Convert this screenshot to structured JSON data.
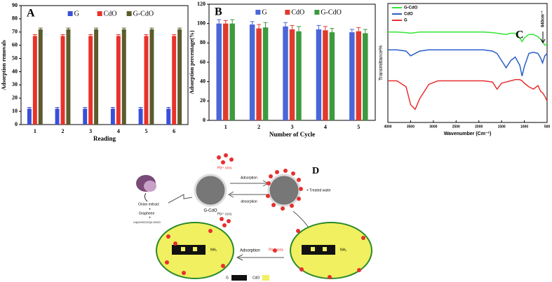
{
  "chart_data": [
    {
      "type": "bar",
      "annotation": "A",
      "xlabel": "Reading",
      "ylabel": "Adsorption removals",
      "categories": [
        "1",
        "2",
        "3",
        "4",
        "5",
        "6"
      ],
      "series": [
        {
          "name": "G",
          "color": "#3a4fd8",
          "values": [
            12,
            12,
            12,
            12,
            12,
            12
          ],
          "errors": [
            1,
            1,
            1,
            1,
            1,
            1
          ]
        },
        {
          "name": "CdO",
          "color": "#e8322a",
          "values": [
            67,
            67,
            67,
            67,
            67,
            67
          ],
          "errors": [
            1,
            1,
            1,
            1,
            1,
            1
          ]
        },
        {
          "name": "G-CdO",
          "color": "#5b5b2c",
          "values": [
            72,
            72,
            72,
            72,
            72,
            72
          ],
          "errors": [
            1,
            1,
            1,
            1,
            1,
            1
          ]
        }
      ],
      "ylim": [
        0,
        90
      ],
      "yticks": [
        0,
        10,
        20,
        30,
        40,
        50,
        60,
        70,
        80,
        90
      ],
      "legend": "top"
    },
    {
      "type": "bar",
      "annotation": "B",
      "xlabel": "Number of Cycle",
      "ylabel": "Adsorption percentage(%)",
      "categories": [
        "1",
        "2",
        "3",
        "4",
        "5"
      ],
      "series": [
        {
          "name": "G",
          "color": "#4a67d8",
          "values": [
            100,
            99,
            97,
            94,
            91
          ],
          "errors": [
            4,
            3,
            4,
            4,
            3
          ]
        },
        {
          "name": "CdO",
          "color": "#e03a2e",
          "values": [
            100,
            95,
            94,
            93,
            92
          ],
          "errors": [
            3,
            4,
            4,
            4,
            4
          ]
        },
        {
          "name": "G-CdO",
          "color": "#3e9a3e",
          "values": [
            100,
            96,
            92,
            91,
            90
          ],
          "errors": [
            4,
            5,
            5,
            4,
            4
          ]
        }
      ],
      "ylim": [
        0,
        120
      ],
      "yticks": [
        0,
        20,
        40,
        60,
        80,
        100,
        120
      ],
      "legend": "top"
    },
    {
      "type": "line",
      "annotation": "C",
      "peak_label": "640cm⁻¹",
      "xlabel": "Wavenumber (Cm⁻¹)",
      "ylabel": "Transmittance%",
      "x": [
        4000,
        3800,
        3600,
        3500,
        3400,
        3300,
        3100,
        2900,
        2700,
        2500,
        2300,
        2100,
        1900,
        1700,
        1600,
        1500,
        1400,
        1300,
        1200,
        1100,
        1050,
        1000,
        900,
        800,
        700,
        640,
        600,
        550,
        500
      ],
      "series": [
        {
          "name": "G-CdO",
          "color": "#33e633",
          "values": [
            76,
            76,
            75.5,
            75,
            75.5,
            76,
            76,
            76,
            76,
            76,
            76,
            76,
            76,
            75.5,
            75,
            74.5,
            74,
            75,
            75,
            71,
            68,
            71,
            74,
            74,
            72,
            70,
            68,
            65,
            66
          ]
        },
        {
          "name": "CdO",
          "color": "#2a5ec8",
          "values": [
            61,
            61,
            60,
            56,
            58,
            60,
            61,
            61,
            61,
            61,
            61,
            61,
            61,
            60,
            58,
            52,
            46,
            52,
            55,
            48,
            39,
            47,
            58,
            59,
            58,
            54,
            50,
            56,
            58
          ]
        },
        {
          "name": "G",
          "color": "#e83030",
          "values": [
            35,
            35,
            30,
            15,
            11,
            20,
            32,
            35,
            35,
            35,
            35,
            35,
            35,
            34,
            28,
            33,
            34,
            35,
            36,
            36,
            35,
            33,
            30,
            28,
            31,
            26,
            25,
            22,
            18
          ]
        }
      ],
      "xlim": [
        4000,
        500
      ],
      "xticks": [
        4000,
        3500,
        3000,
        2500,
        2000,
        1500,
        1000,
        500
      ],
      "ylim": [
        0,
        100
      ],
      "legend": "upper left"
    }
  ],
  "diagram": {
    "label": "D",
    "precursors": [
      "Onion extract",
      "+",
      "Graphene",
      "+",
      "Cd(CH3COO)2.2H2O"
    ],
    "ions": "Pb²⁺ ions",
    "composite": "G-CdO",
    "adsorption": "Adsorption",
    "desorption": "desorption",
    "treated": "+ Treated water",
    "amine": "NH₂",
    "legend_g": "G",
    "legend_cdo": "CdO"
  }
}
